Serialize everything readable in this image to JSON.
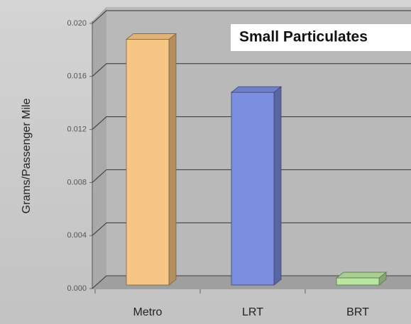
{
  "chart_data": {
    "type": "bar3d",
    "title": "Small Particulates",
    "y_label": "Grams/Passenger Mile",
    "categories": [
      "Metro",
      "LRT",
      "BRT"
    ],
    "values": [
      0.0188,
      0.0148,
      0.0008
    ],
    "colors": [
      "#f8c684",
      "#7b8ee0",
      "#b9e7a0"
    ],
    "ylim": [
      0,
      0.02
    ],
    "yticks": [
      {
        "value": 0,
        "label": "0.000"
      },
      0.004,
      0.008,
      0.012,
      0.016,
      {
        "value": 0.02,
        "label": "0.020"
      }
    ],
    "grid": true
  }
}
